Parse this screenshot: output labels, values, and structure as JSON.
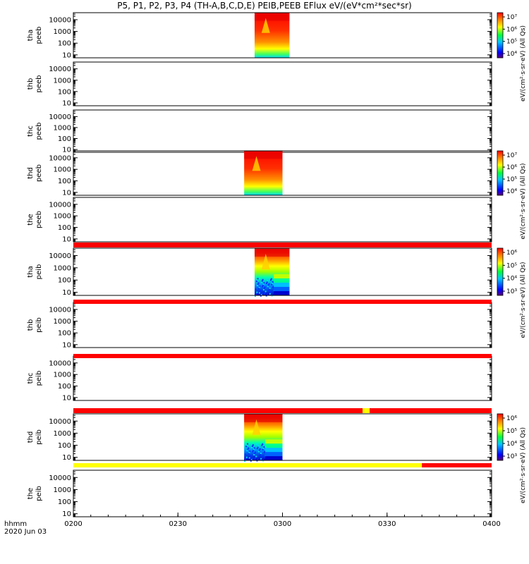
{
  "title": "P5, P1, P2, P3, P4 (TH-A,B,C,D,E) PEIB,PEEB EFlux eV/(eV*cm²*sec*sr)",
  "colors": {
    "red_bar": "#ff0000",
    "yellow_bar": "#ffff00",
    "axis": "#000000"
  },
  "chart_data": {
    "type": "heatmap",
    "x": {
      "label": "hhmm",
      "date": "2020 Jun 03",
      "tick_labels": [
        "0200",
        "0230",
        "0300",
        "0330",
        "0400"
      ],
      "range_minutes": [
        0,
        120
      ]
    },
    "y_ticks": [
      "10",
      "100",
      "1000",
      "10000"
    ],
    "y_scale": "log",
    "panels": [
      {
        "name": "tha peeb",
        "line1": "tha",
        "line2": "peeb",
        "data": {
          "x_start": 52,
          "x_end": 62,
          "kind": "electron"
        },
        "colorbar": {
          "ticks": [
            "10⁴",
            "10⁵",
            "10⁶",
            "10⁷"
          ],
          "label": "eV/(cm²·s·sr·eV) (All Qs)"
        }
      },
      {
        "name": "thb peeb",
        "line1": "thb",
        "line2": "peeb",
        "data": null
      },
      {
        "name": "thc peeb",
        "line1": "thc",
        "line2": "peeb",
        "data": null
      },
      {
        "name": "thd peeb",
        "line1": "thd",
        "line2": "peeb",
        "data": {
          "x_start": 49,
          "x_end": 60,
          "kind": "electron"
        },
        "colorbar": {
          "ticks": [
            "10⁴",
            "10⁵",
            "10⁶",
            "10⁷"
          ],
          "label": "eV/(cm²·s·sr·eV) (All Qs)"
        }
      },
      {
        "name": "the peeb",
        "line1": "the",
        "line2": "peeb",
        "data": null
      },
      {
        "name": "tha peib",
        "line1": "tha",
        "line2": "peib",
        "data": {
          "x_start": 52,
          "x_end": 62,
          "kind": "ion"
        },
        "colorbar": {
          "ticks": [
            "10³",
            "10⁴",
            "10⁵",
            "10⁶"
          ],
          "label": "eV/(cm²·s·sr·eV) (All Qs)"
        }
      },
      {
        "name": "thb peib",
        "line1": "thb",
        "line2": "peib",
        "data": null
      },
      {
        "name": "thc peib",
        "line1": "thc",
        "line2": "peib",
        "data": null
      },
      {
        "name": "thd peib",
        "line1": "thd",
        "line2": "peib",
        "data": {
          "x_start": 49,
          "x_end": 60,
          "kind": "ion"
        },
        "colorbar": {
          "ticks": [
            "10³",
            "10⁴",
            "10⁵",
            "10⁶"
          ],
          "label": "eV/(cm²·s·sr·eV) (All Qs)"
        }
      },
      {
        "name": "the peib",
        "line1": "the",
        "line2": "peib",
        "data": null
      }
    ],
    "status_bars": [
      {
        "after_panel": 4,
        "segments": [
          {
            "from": 0,
            "to": 120,
            "color": "red"
          }
        ]
      },
      {
        "after_panel": 5,
        "segments": [
          {
            "from": 0,
            "to": 120,
            "color": "red"
          }
        ]
      },
      {
        "after_panel": 6,
        "segments": [
          {
            "from": 0,
            "to": 120,
            "color": "red"
          }
        ]
      },
      {
        "after_panel": 7,
        "segments": [
          {
            "from": 0,
            "to": 83,
            "color": "red"
          },
          {
            "from": 83,
            "to": 85,
            "color": "yellow"
          },
          {
            "from": 85,
            "to": 120,
            "color": "red"
          }
        ]
      },
      {
        "after_panel": 8,
        "segments": [
          {
            "from": 0,
            "to": 100,
            "color": "yellow"
          },
          {
            "from": 100,
            "to": 120,
            "color": "red"
          }
        ]
      }
    ]
  }
}
